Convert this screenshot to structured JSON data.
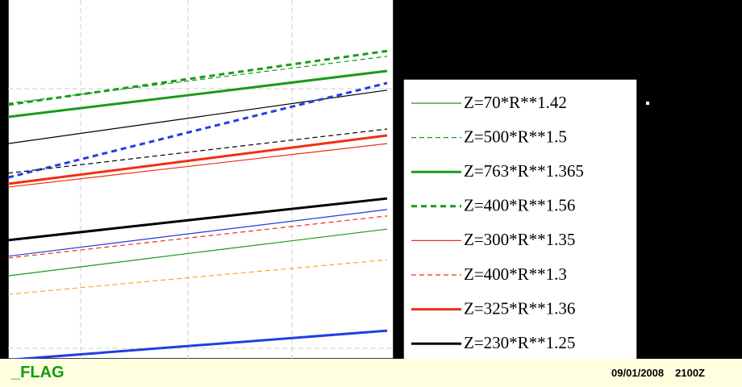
{
  "chart_data": {
    "type": "line",
    "x": [
      0,
      50,
      100
    ],
    "xlim": [
      0,
      100
    ],
    "ylim": [
      0,
      100
    ],
    "series": [
      {
        "name": "Z=70*R**1.42",
        "color": "#1a9a1a",
        "width": 1.2,
        "dash": false,
        "values": [
          22.6,
          29.2,
          35.7
        ]
      },
      {
        "name": "Z=500*R**1.5",
        "color": "#1a9a1a",
        "width": 1.2,
        "dash": true,
        "values": [
          71.0,
          77.6,
          84.2
        ]
      },
      {
        "name": "Z=763*R**1.365",
        "color": "#1a9a1a",
        "width": 3,
        "dash": false,
        "values": [
          67.2,
          73.6,
          80.1
        ]
      },
      {
        "name": "Z=400*R**1.56",
        "color": "#1a9a1a",
        "width": 3,
        "dash": true,
        "values": [
          70.6,
          78.2,
          85.7
        ]
      },
      {
        "name": "Z=300*R**1.35",
        "color": "#f03010",
        "width": 1.2,
        "dash": false,
        "values": [
          47.5,
          53.6,
          59.7
        ]
      },
      {
        "name": "Z=400*R**1.3",
        "color": "#f03010",
        "width": 1.2,
        "dash": true,
        "values": [
          27.6,
          33.5,
          39.4
        ]
      },
      {
        "name": "Z=325*R**1.36",
        "color": "#f03010",
        "width": 3,
        "dash": false,
        "values": [
          48.4,
          55.2,
          62.0
        ]
      },
      {
        "name": "Z=230*R**1.25",
        "color": "#000000",
        "width": 3,
        "dash": false,
        "values": [
          32.6,
          38.5,
          44.3
        ]
      },
      {
        "color": "#000000",
        "width": 1.2,
        "dash": false,
        "values": [
          59.7,
          67.2,
          74.7
        ]
      },
      {
        "color": "#1f3fe0",
        "width": 3,
        "dash": true,
        "values": [
          50.2,
          63.5,
          76.7
        ]
      },
      {
        "color": "#000000",
        "width": 1.2,
        "dash": true,
        "values": [
          51.4,
          57.6,
          63.8
        ]
      },
      {
        "color": "#1f3fe0",
        "width": 1.2,
        "dash": false,
        "values": [
          28.1,
          34.7,
          41.2
        ]
      },
      {
        "color": "#f5a623",
        "width": 1.2,
        "dash": true,
        "values": [
          17.4,
          22.3,
          27.1
        ]
      },
      {
        "color": "#1f3fe0",
        "width": 3,
        "dash": false,
        "values": [
          -1,
          3.1,
          7.2
        ]
      }
    ]
  },
  "status_bar": {
    "left": "_FLAG",
    "date": "09/01/2008",
    "time": "2100Z"
  }
}
